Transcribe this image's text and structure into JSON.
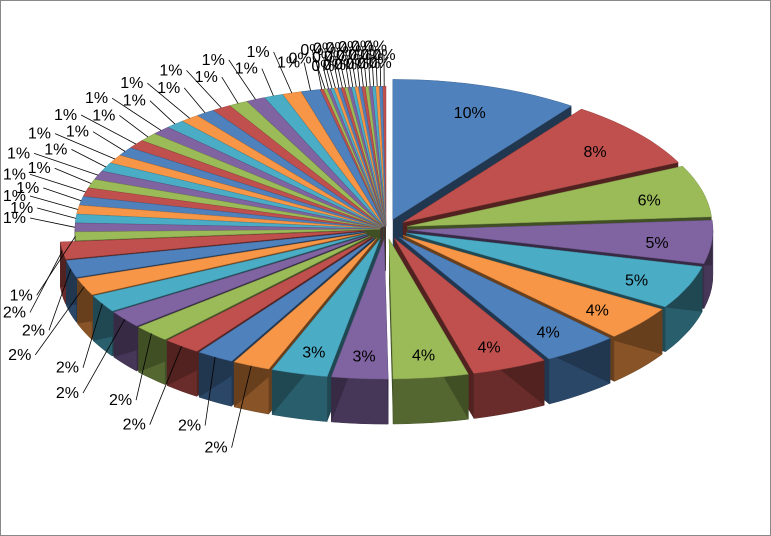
{
  "chart_data": {
    "type": "pie",
    "style": "3d-exploded",
    "legend": "none",
    "values": [
      10,
      8,
      6,
      5,
      5,
      4,
      4,
      4,
      4,
      3,
      3,
      2,
      2,
      2,
      2,
      2,
      2,
      2,
      2,
      2,
      1,
      1,
      1,
      1,
      1,
      1,
      1,
      1,
      1,
      1,
      1,
      1,
      1,
      1,
      1,
      1,
      1,
      1,
      1,
      1,
      1,
      1,
      1,
      0,
      0,
      0,
      0,
      0,
      0,
      0,
      0,
      0,
      0,
      0,
      0,
      0,
      0,
      0,
      0,
      0,
      0,
      0
    ],
    "labels": [
      "10%",
      "8%",
      "6%",
      "5%",
      "5%",
      "4%",
      "4%",
      "4%",
      "4%",
      "3%",
      "3%",
      "2%",
      "2%",
      "2%",
      "2%",
      "2%",
      "2%",
      "2%",
      "2%",
      "2%",
      "1%",
      "1%",
      "1%",
      "1%",
      "1%",
      "1%",
      "1%",
      "1%",
      "1%",
      "1%",
      "1%",
      "1%",
      "1%",
      "1%",
      "1%",
      "1%",
      "1%",
      "1%",
      "1%",
      "1%",
      "1%",
      "1%",
      "1%",
      "0%",
      "0%",
      "0%",
      "0%",
      "0%",
      "0%",
      "0%",
      "0%",
      "0%",
      "0%",
      "0%",
      "0%",
      "0%",
      "0%",
      "0%",
      "0%",
      "0%",
      "0%",
      "0%"
    ],
    "colors": [
      "#4F81BD",
      "#C0504D",
      "#9BBB59",
      "#8064A2",
      "#4BACC6",
      "#F79646"
    ]
  }
}
